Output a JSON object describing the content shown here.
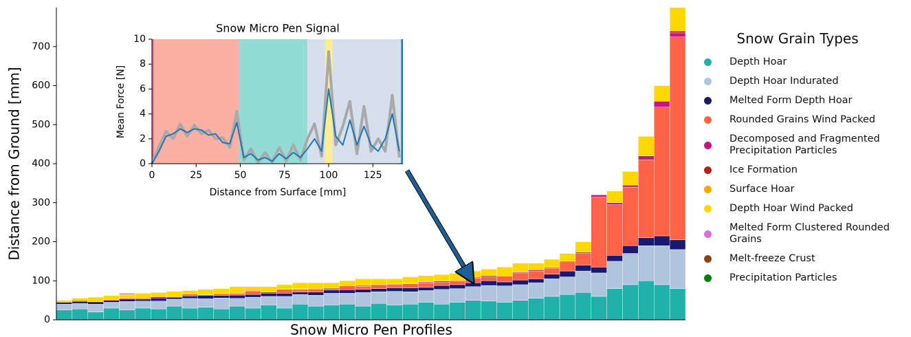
{
  "chart_data": [
    {
      "type": "stacked-bar",
      "xlabel": "Snow Micro Pen Profiles",
      "ylabel": "Distance from Ground [mm]",
      "legend_title": "Snow Grain Types",
      "ylim": [
        0,
        800
      ],
      "yticks": [
        0,
        100,
        200,
        300,
        400,
        500,
        600,
        700
      ],
      "categories": [
        null,
        null,
        null,
        null,
        null,
        null,
        null,
        null,
        null,
        null,
        null,
        null,
        null,
        null,
        null,
        null,
        null,
        null,
        null,
        null,
        null,
        null,
        null,
        null,
        null,
        null,
        null,
        null,
        null,
        null,
        null,
        null,
        null,
        null,
        null,
        null,
        null,
        null,
        null,
        null
      ],
      "series": [
        {
          "name": "Depth Hoar",
          "color": "#20b2aa",
          "values": [
            25,
            28,
            20,
            30,
            25,
            30,
            28,
            35,
            30,
            32,
            28,
            35,
            30,
            38,
            30,
            40,
            35,
            38,
            40,
            35,
            42,
            38,
            40,
            45,
            40,
            45,
            50,
            48,
            45,
            50,
            55,
            60,
            65,
            70,
            60,
            80,
            90,
            100,
            90,
            80
          ]
        },
        {
          "name": "Depth Hoar Indurated",
          "color": "#b0c4de",
          "values": [
            15,
            14,
            20,
            15,
            22,
            18,
            20,
            18,
            25,
            22,
            28,
            20,
            28,
            22,
            30,
            25,
            28,
            30,
            28,
            35,
            30,
            35,
            32,
            30,
            38,
            35,
            35,
            40,
            42,
            40,
            40,
            45,
            45,
            55,
            60,
            70,
            80,
            90,
            100,
            100
          ]
        },
        {
          "name": "Melted Form Depth Hoar",
          "color": "#191970",
          "values": [
            5,
            5,
            6,
            5,
            6,
            5,
            8,
            5,
            6,
            8,
            6,
            8,
            7,
            8,
            8,
            6,
            8,
            8,
            9,
            8,
            8,
            9,
            10,
            8,
            10,
            10,
            10,
            12,
            10,
            12,
            10,
            12,
            15,
            15,
            15,
            15,
            20,
            20,
            25,
            25
          ]
        },
        {
          "name": "Rounded Grains Wind Packed",
          "color": "#ff6347",
          "values": [
            0,
            0,
            0,
            2,
            0,
            3,
            0,
            0,
            5,
            0,
            5,
            3,
            8,
            0,
            10,
            5,
            8,
            0,
            10,
            8,
            10,
            5,
            10,
            12,
            8,
            10,
            12,
            10,
            15,
            18,
            20,
            15,
            25,
            30,
            180,
            130,
            150,
            200,
            330,
            520
          ]
        },
        {
          "name": "Decomposed and Fragmented Precipitation Particles",
          "color": "#c71585",
          "values": [
            0,
            2,
            0,
            0,
            2,
            0,
            3,
            0,
            0,
            2,
            0,
            0,
            2,
            3,
            0,
            2,
            0,
            3,
            0,
            2,
            0,
            3,
            0,
            2,
            3,
            0,
            2,
            3,
            0,
            2,
            3,
            2,
            0,
            3,
            5,
            5,
            5,
            10,
            15,
            10
          ]
        },
        {
          "name": "Ice Formation",
          "color": "#b22222",
          "values": [
            0,
            0,
            0,
            0,
            0,
            0,
            0,
            0,
            0,
            0,
            0,
            2,
            0,
            0,
            0,
            0,
            0,
            2,
            0,
            0,
            0,
            0,
            0,
            0,
            0,
            0,
            0,
            0,
            0,
            0,
            0,
            0,
            0,
            0,
            0,
            0,
            0,
            0,
            0,
            5
          ]
        },
        {
          "name": "Surface Hoar",
          "color": "#ffa500",
          "values": [
            0,
            0,
            0,
            0,
            0,
            0,
            0,
            0,
            0,
            0,
            0,
            0,
            0,
            0,
            0,
            2,
            0,
            0,
            0,
            0,
            0,
            0,
            2,
            0,
            0,
            0,
            0,
            0,
            0,
            0,
            0,
            0,
            0,
            0,
            0,
            0,
            0,
            0,
            0,
            0
          ]
        },
        {
          "name": "Depth Hoar Wind Packed",
          "color": "#ffd700",
          "values": [
            5,
            6,
            12,
            10,
            10,
            12,
            11,
            15,
            9,
            14,
            13,
            17,
            10,
            14,
            12,
            15,
            16,
            14,
            13,
            17,
            15,
            15,
            16,
            16,
            17,
            19,
            16,
            17,
            23,
            23,
            17,
            21,
            20,
            27,
            0,
            30,
            35,
            50,
            40,
            60
          ]
        },
        {
          "name": "Melted Form Clustered Rounded Grains",
          "color": "#da70d6",
          "values": [
            0,
            0,
            0,
            0,
            3,
            0,
            0,
            0,
            0,
            0,
            0,
            0,
            0,
            0,
            0,
            0,
            0,
            0,
            0,
            0,
            0,
            0,
            0,
            0,
            0,
            0,
            0,
            0,
            0,
            0,
            0,
            0,
            0,
            0,
            0,
            0,
            0,
            0,
            0,
            0
          ]
        },
        {
          "name": "Melt-freeze Crust",
          "color": "#8b4513",
          "values": [
            0,
            0,
            0,
            0,
            0,
            0,
            0,
            0,
            0,
            0,
            0,
            0,
            0,
            0,
            0,
            0,
            0,
            0,
            0,
            0,
            0,
            0,
            0,
            0,
            0,
            0,
            0,
            0,
            0,
            0,
            0,
            0,
            0,
            0,
            0,
            0,
            0,
            0,
            0,
            0
          ]
        },
        {
          "name": "Precipitation Particles",
          "color": "#008000",
          "values": [
            0,
            0,
            0,
            0,
            0,
            0,
            0,
            0,
            0,
            0,
            0,
            0,
            0,
            0,
            0,
            0,
            0,
            0,
            0,
            0,
            0,
            0,
            0,
            0,
            0,
            0,
            0,
            0,
            0,
            0,
            0,
            0,
            0,
            0,
            0,
            0,
            0,
            0,
            0,
            0
          ]
        }
      ]
    },
    {
      "type": "line",
      "title": "Snow Micro Pen Signal",
      "xlabel": "Distance from Surface [mm]",
      "ylabel": "Mean Force [N]",
      "xlim": [
        0,
        142
      ],
      "ylim": [
        0,
        10
      ],
      "xticks": [
        0,
        25,
        50,
        75,
        100,
        125
      ],
      "yticks": [
        0,
        2,
        4,
        6,
        8,
        10
      ],
      "regions": [
        {
          "start": 0,
          "end": 1,
          "color": "#e85aa0"
        },
        {
          "start": 1,
          "end": 49,
          "color": "#fcb0a2"
        },
        {
          "start": 49,
          "end": 88,
          "color": "#93dbd5"
        },
        {
          "start": 88,
          "end": 98,
          "color": "#d6e0ec"
        },
        {
          "start": 98,
          "end": 102,
          "color": "#ffee8f"
        },
        {
          "start": 102,
          "end": 141,
          "color": "#d6e0ec"
        },
        {
          "start": 141,
          "end": 142,
          "color": "#1f77b4"
        }
      ],
      "x": [
        0,
        4,
        8,
        12,
        16,
        20,
        24,
        28,
        32,
        36,
        40,
        44,
        48,
        52,
        56,
        60,
        64,
        68,
        72,
        76,
        80,
        84,
        88,
        92,
        96,
        100,
        104,
        108,
        112,
        116,
        120,
        124,
        128,
        132,
        136,
        140
      ],
      "series": [
        {
          "color": "#a9a9a9",
          "values": [
            0,
            1.4,
            2.6,
            2.0,
            3.2,
            2.2,
            3.1,
            2.4,
            2.7,
            2.0,
            2.1,
            1.3,
            4.2,
            0.3,
            1.2,
            0.1,
            0.9,
            0.1,
            1.3,
            0.2,
            1.5,
            0.3,
            2.0,
            3.2,
            0.6,
            9.0,
            1.5,
            3.0,
            5.0,
            0.8,
            4.6,
            1.0,
            2.0,
            1.0,
            5.5,
            0.5
          ]
        },
        {
          "color": "#1f77b4",
          "values": [
            0,
            1.0,
            2.2,
            2.4,
            2.8,
            2.5,
            2.8,
            2.7,
            2.3,
            2.4,
            1.7,
            1.6,
            3.3,
            0.5,
            0.8,
            0.3,
            0.5,
            0.2,
            0.8,
            0.4,
            0.9,
            0.5,
            1.2,
            2.0,
            1.0,
            6.0,
            2.2,
            1.5,
            3.5,
            1.5,
            3.0,
            1.5,
            1.0,
            2.0,
            4.0,
            1.0
          ]
        }
      ]
    }
  ]
}
